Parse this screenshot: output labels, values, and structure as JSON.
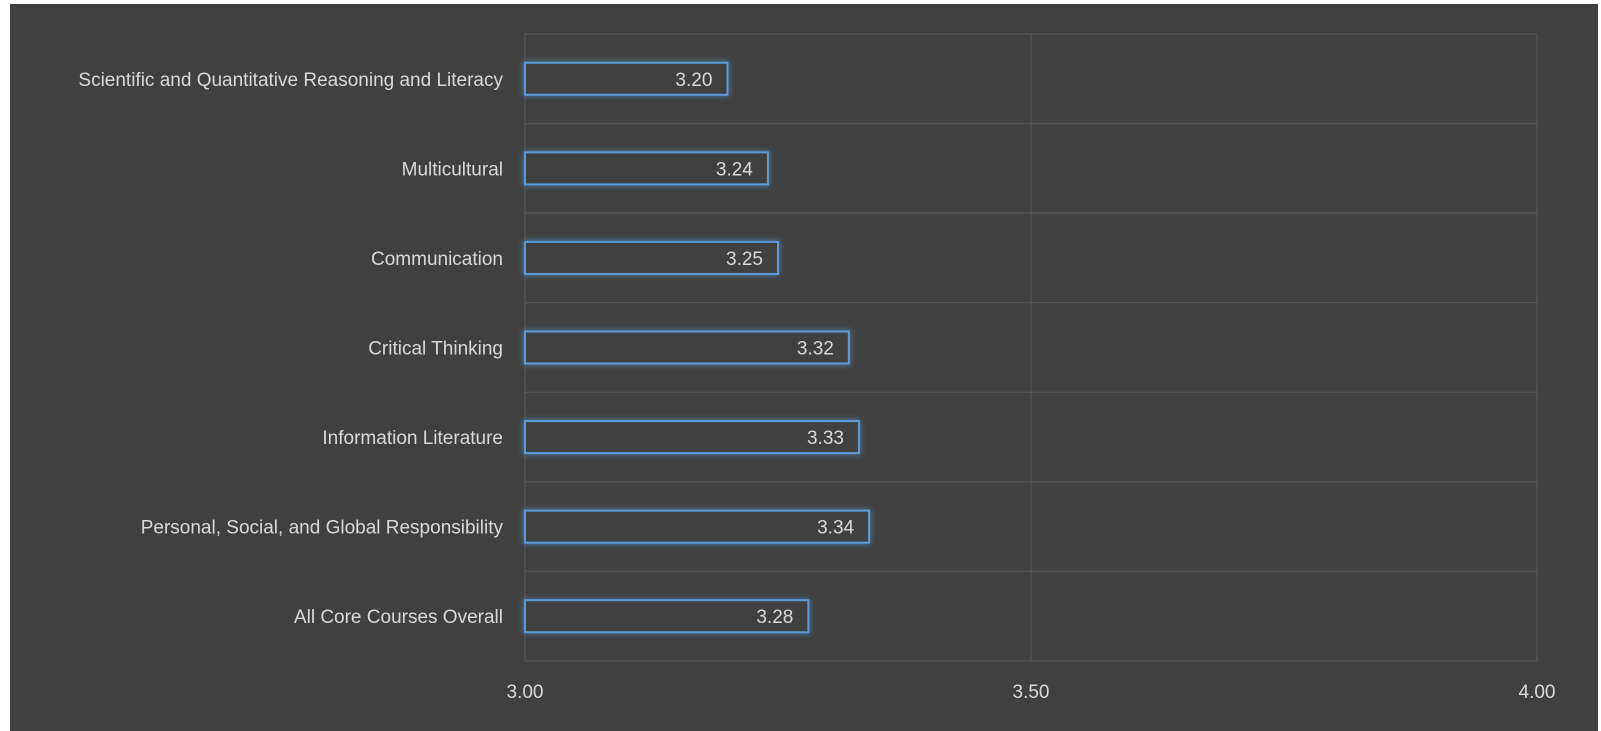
{
  "chart_data": {
    "type": "bar",
    "orientation": "horizontal",
    "categories": [
      "Scientific and Quantitative Reasoning and Literacy",
      "Multicultural",
      "Communication",
      "Critical Thinking",
      "Information Literature",
      "Personal, Social, and Global Responsibility",
      "All Core Courses Overall"
    ],
    "values": [
      3.2,
      3.24,
      3.25,
      3.32,
      3.33,
      3.34,
      3.28
    ],
    "value_labels": [
      "3.20",
      "3.24",
      "3.25",
      "3.32",
      "3.33",
      "3.34",
      "3.28"
    ],
    "xlim": [
      3.0,
      4.0
    ],
    "xticks": [
      3.0,
      3.5,
      4.0
    ],
    "xtick_labels": [
      "3.00",
      "3.50",
      "4.00"
    ],
    "title": "",
    "xlabel": "",
    "ylabel": "",
    "grid": true,
    "legend": "none",
    "colors": {
      "background": "#404040",
      "bar_outline": "#5b9bd5",
      "bar_fill": "#404040",
      "grid": "#595959",
      "text": "#d9d9d9"
    }
  }
}
